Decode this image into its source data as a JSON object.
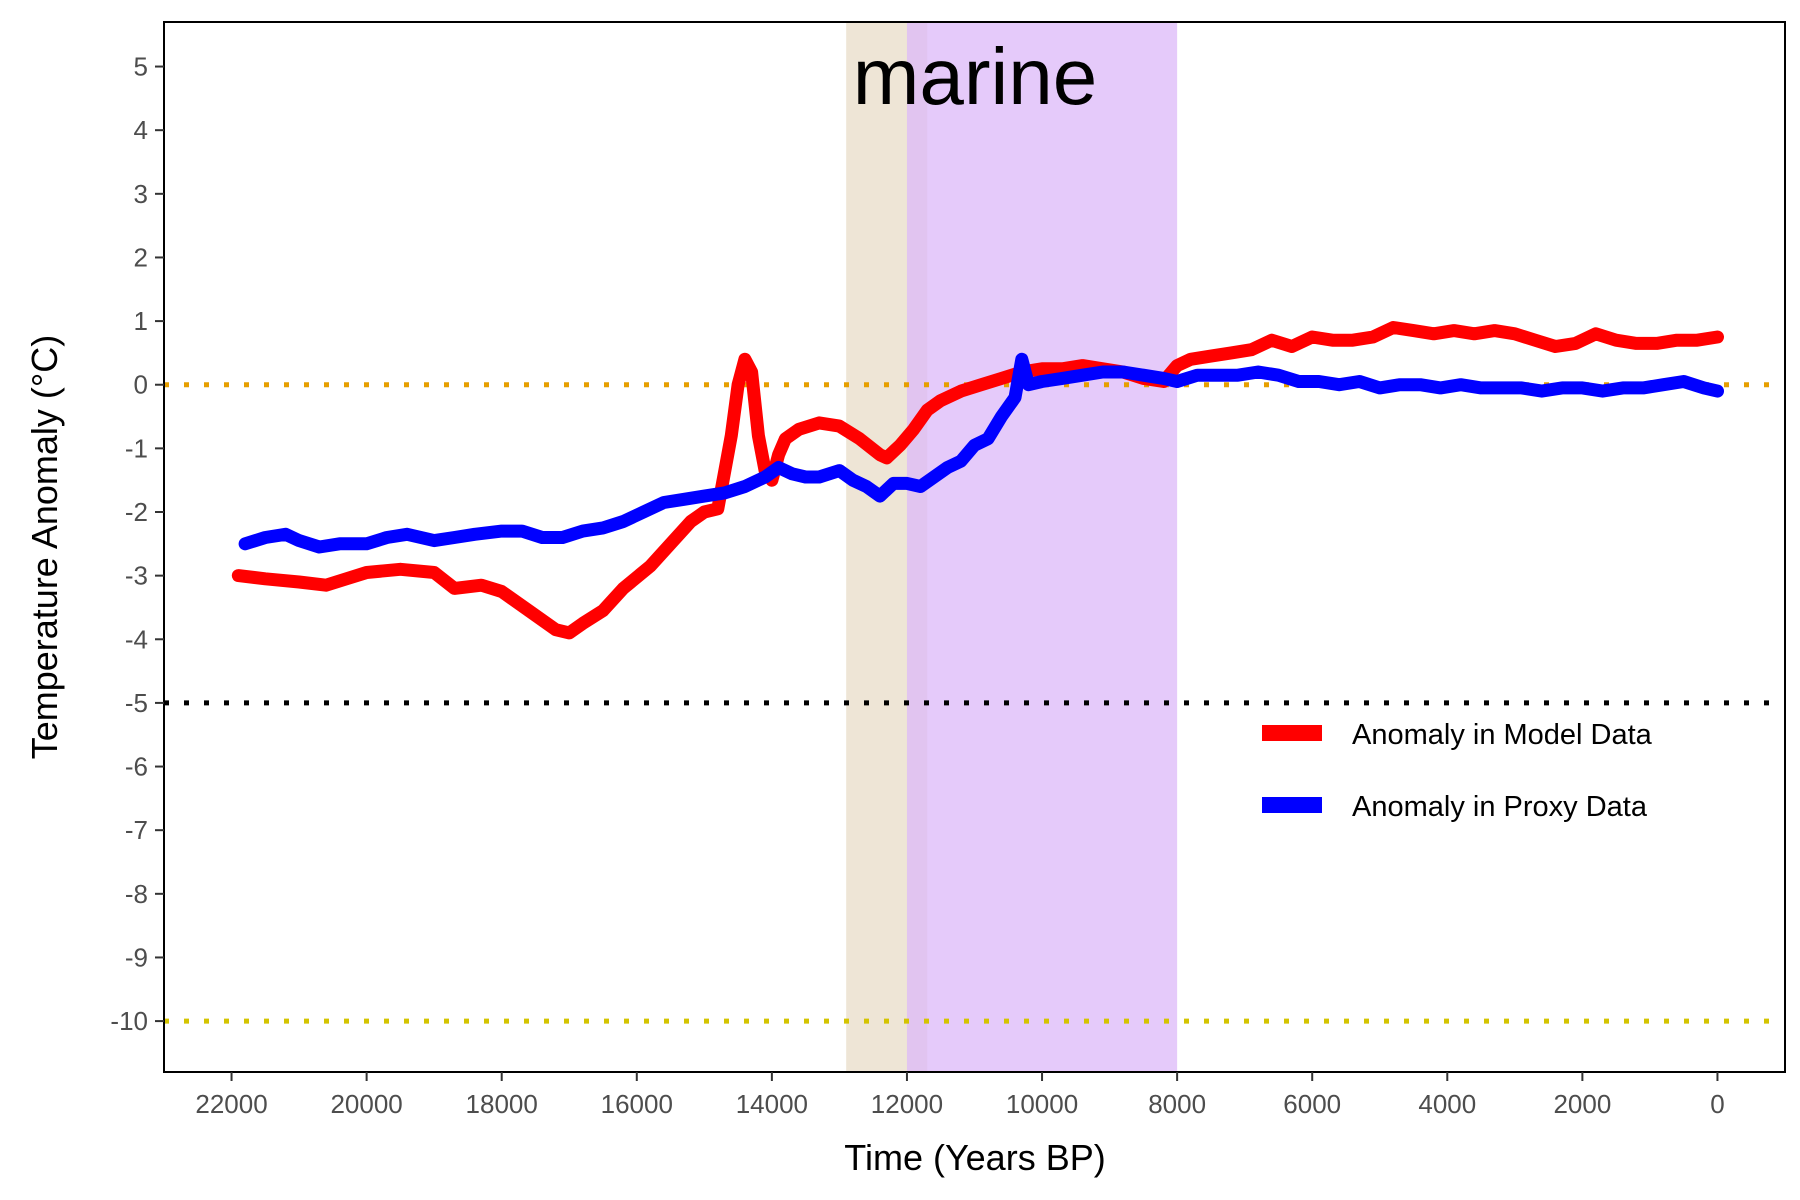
{
  "chart_data": {
    "type": "line",
    "title": "marine",
    "xlabel": "Time (Years BP)",
    "ylabel": "Temperature Anomaly (°C)",
    "xlim": [
      23000,
      -1000
    ],
    "ylim": [
      -10.8,
      5.7
    ],
    "x_reversed": true,
    "x_ticks": [
      22000,
      20000,
      18000,
      16000,
      14000,
      12000,
      10000,
      8000,
      6000,
      4000,
      2000,
      0
    ],
    "y_ticks": [
      5,
      4,
      3,
      2,
      1,
      0,
      -1,
      -2,
      -3,
      -4,
      -5,
      -6,
      -7,
      -8,
      -9,
      -10
    ],
    "grid": false,
    "legend_position": "lower-right",
    "shaded_regions": [
      {
        "x_start": 12900,
        "x_end": 11700,
        "color": "#e8dcc8"
      },
      {
        "x_start": 12000,
        "x_end": 8000,
        "color": "#dcb8f8"
      }
    ],
    "reference_lines": [
      {
        "y": 0,
        "color": "#e69f00",
        "style": "dotted"
      },
      {
        "y": -5,
        "color": "#000000",
        "style": "dotted"
      },
      {
        "y": -10,
        "color": "#d4c400",
        "style": "dotted"
      }
    ],
    "series": [
      {
        "name": "Anomaly in Model Data",
        "color": "#ff0000",
        "x": [
          21900,
          21500,
          21000,
          20600,
          20300,
          20000,
          19500,
          19000,
          18700,
          18300,
          18000,
          17600,
          17200,
          17000,
          16800,
          16500,
          16200,
          15800,
          15500,
          15200,
          15000,
          14800,
          14600,
          14500,
          14400,
          14300,
          14200,
          14100,
          14000,
          13900,
          13800,
          13600,
          13300,
          13000,
          12700,
          12400,
          12300,
          12100,
          11900,
          11700,
          11500,
          11200,
          10900,
          10600,
          10300,
          10000,
          9700,
          9400,
          9100,
          8800,
          8500,
          8200,
          8000,
          7800,
          7500,
          7200,
          6900,
          6600,
          6300,
          6000,
          5700,
          5400,
          5100,
          4800,
          4500,
          4200,
          3900,
          3600,
          3300,
          3000,
          2700,
          2400,
          2100,
          1800,
          1500,
          1200,
          900,
          600,
          300,
          0
        ],
        "y": [
          -3.0,
          -3.05,
          -3.1,
          -3.15,
          -3.05,
          -2.95,
          -2.9,
          -2.95,
          -3.2,
          -3.15,
          -3.25,
          -3.55,
          -3.85,
          -3.9,
          -3.75,
          -3.55,
          -3.2,
          -2.85,
          -2.5,
          -2.15,
          -2.0,
          -1.95,
          -0.8,
          0.0,
          0.4,
          0.2,
          -0.8,
          -1.35,
          -1.5,
          -1.1,
          -0.85,
          -0.7,
          -0.6,
          -0.65,
          -0.85,
          -1.1,
          -1.15,
          -0.95,
          -0.7,
          -0.4,
          -0.25,
          -0.1,
          0.0,
          0.1,
          0.2,
          0.25,
          0.25,
          0.3,
          0.25,
          0.2,
          0.1,
          0.05,
          0.3,
          0.4,
          0.45,
          0.5,
          0.55,
          0.7,
          0.6,
          0.75,
          0.7,
          0.7,
          0.75,
          0.9,
          0.85,
          0.8,
          0.85,
          0.8,
          0.85,
          0.8,
          0.7,
          0.6,
          0.65,
          0.8,
          0.7,
          0.65,
          0.65,
          0.7,
          0.7,
          0.75
        ]
      },
      {
        "name": "Anomaly in Proxy Data",
        "color": "#0000ff",
        "x": [
          21800,
          21500,
          21200,
          21000,
          20700,
          20400,
          20000,
          19700,
          19400,
          19000,
          18700,
          18400,
          18000,
          17700,
          17400,
          17100,
          16800,
          16500,
          16200,
          15900,
          15600,
          15300,
          15000,
          14700,
          14400,
          14100,
          13900,
          13700,
          13500,
          13300,
          13000,
          12800,
          12600,
          12400,
          12200,
          12000,
          11800,
          11600,
          11400,
          11200,
          11000,
          10800,
          10600,
          10400,
          10300,
          10200,
          10000,
          9700,
          9400,
          9100,
          8800,
          8500,
          8200,
          8000,
          7700,
          7400,
          7100,
          6800,
          6500,
          6200,
          5900,
          5600,
          5300,
          5000,
          4700,
          4400,
          4100,
          3800,
          3500,
          3200,
          2900,
          2600,
          2300,
          2000,
          1700,
          1400,
          1100,
          800,
          500,
          200,
          0
        ],
        "y": [
          -2.5,
          -2.4,
          -2.35,
          -2.45,
          -2.55,
          -2.5,
          -2.5,
          -2.4,
          -2.35,
          -2.45,
          -2.4,
          -2.35,
          -2.3,
          -2.3,
          -2.4,
          -2.4,
          -2.3,
          -2.25,
          -2.15,
          -2.0,
          -1.85,
          -1.8,
          -1.75,
          -1.7,
          -1.6,
          -1.45,
          -1.3,
          -1.4,
          -1.45,
          -1.45,
          -1.35,
          -1.5,
          -1.6,
          -1.75,
          -1.55,
          -1.55,
          -1.6,
          -1.45,
          -1.3,
          -1.2,
          -0.95,
          -0.85,
          -0.5,
          -0.2,
          0.4,
          0.0,
          0.05,
          0.1,
          0.15,
          0.2,
          0.2,
          0.15,
          0.1,
          0.05,
          0.15,
          0.15,
          0.15,
          0.2,
          0.15,
          0.05,
          0.05,
          0.0,
          0.05,
          -0.05,
          0.0,
          0.0,
          -0.05,
          0.0,
          -0.05,
          -0.05,
          -0.05,
          -0.1,
          -0.05,
          -0.05,
          -0.1,
          -0.05,
          -0.05,
          0.0,
          0.05,
          -0.05,
          -0.1
        ]
      }
    ]
  }
}
